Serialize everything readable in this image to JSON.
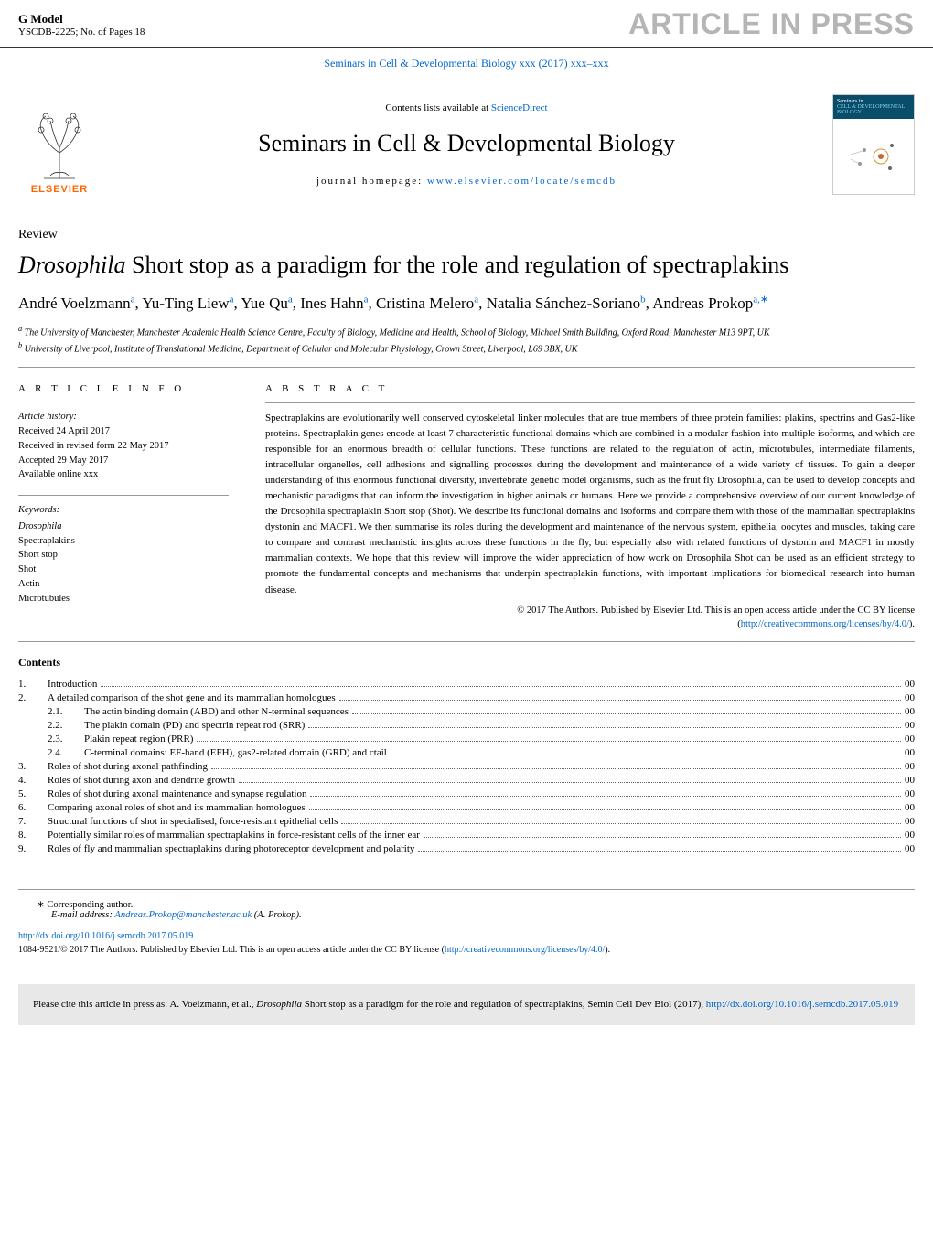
{
  "header": {
    "g_model": "G Model",
    "model_code": "YSCDB-2225;   No. of Pages 18",
    "article_in_press": "ARTICLE IN PRESS"
  },
  "journal_ref": "Seminars in Cell & Developmental Biology xxx (2017) xxx–xxx",
  "masthead": {
    "contents_prefix": "Contents lists available at ",
    "contents_link": "ScienceDirect",
    "journal_title": "Seminars in Cell & Developmental Biology",
    "homepage_prefix": "journal homepage: ",
    "homepage_url": "www.elsevier.com/locate/semcdb",
    "elsevier_label": "ELSEVIER",
    "cover_top": "Seminars in",
    "cover_line1": "CELL & DEVELOPMENTAL",
    "cover_line2": "BIOLOGY"
  },
  "article": {
    "type": "Review",
    "title_italic": "Drosophila",
    "title_rest": " Short stop as a paradigm for the role and regulation of spectraplakins",
    "authors": [
      {
        "name": "André Voelzmann",
        "aff": "a"
      },
      {
        "name": "Yu-Ting Liew",
        "aff": "a"
      },
      {
        "name": "Yue Qu",
        "aff": "a"
      },
      {
        "name": "Ines Hahn",
        "aff": "a"
      },
      {
        "name": "Cristina Melero",
        "aff": "a"
      },
      {
        "name": "Natalia Sánchez-Soriano",
        "aff": "b"
      },
      {
        "name": "Andreas Prokop",
        "aff": "a,",
        "corr": "∗"
      }
    ],
    "affiliations": {
      "a": "The University of Manchester, Manchester Academic Health Science Centre, Faculty of Biology, Medicine and Health, School of Biology, Michael Smith Building, Oxford Road, Manchester M13 9PT, UK",
      "b": "University of Liverpool, Institute of Translational Medicine, Department of Cellular and Molecular Physiology, Crown Street, Liverpool, L69 3BX, UK"
    }
  },
  "info": {
    "heading": "a r t i c l e   i n f o",
    "history_label": "Article history:",
    "received": "Received 24 April 2017",
    "revised": "Received in revised form 22 May 2017",
    "accepted": "Accepted 29 May 2017",
    "online": "Available online xxx",
    "keywords_label": "Keywords:",
    "keywords": [
      "Drosophila",
      "Spectraplakins",
      "Short stop",
      "Shot",
      "Actin",
      "Microtubules"
    ]
  },
  "abstract": {
    "heading": "a b s t r a c t",
    "text": "Spectraplakins are evolutionarily well conserved cytoskeletal linker molecules that are true members of three protein families: plakins, spectrins and Gas2-like proteins. Spectraplakin genes encode at least 7 characteristic functional domains which are combined in a modular fashion into multiple isoforms, and which are responsible for an enormous breadth of cellular functions. These functions are related to the regulation of actin, microtubules, intermediate filaments, intracellular organelles, cell adhesions and signalling processes during the development and maintenance of a wide variety of tissues. To gain a deeper understanding of this enormous functional diversity, invertebrate genetic model organisms, such as the fruit fly Drosophila, can be used to develop concepts and mechanistic paradigms that can inform the investigation in higher animals or humans. Here we provide a comprehensive overview of our current knowledge of the Drosophila spectraplakin Short stop (Shot). We describe its functional domains and isoforms and compare them with those of the mammalian spectraplakins dystonin and MACF1. We then summarise its roles during the development and maintenance of the nervous system, epithelia, oocytes and muscles, taking care to compare and contrast mechanistic insights across these functions in the fly, but especially also with related functions of dystonin and MACF1 in mostly mammalian contexts. We hope that this review will improve the wider appreciation of how work on Drosophila Shot can be used as an efficient strategy to promote the fundamental concepts and mechanisms that underpin spectraplakin functions, with important implications for biomedical research into human disease.",
    "copyright_line1": "© 2017 The Authors. Published by Elsevier Ltd. This is an open access article under the CC BY license",
    "copyright_link": "http://creativecommons.org/licenses/by/4.0/",
    "copyright_close": ")."
  },
  "contents": {
    "heading": "Contents",
    "items": [
      {
        "num": "1.",
        "text": "Introduction",
        "page": "00"
      },
      {
        "num": "2.",
        "text": "A detailed comparison of the shot gene and its mammalian homologues",
        "page": "00"
      },
      {
        "num": "",
        "sub": "2.1.",
        "text": "The actin binding domain (ABD) and other N-terminal sequences",
        "page": "00"
      },
      {
        "num": "",
        "sub": "2.2.",
        "text": "The plakin domain (PD) and spectrin repeat rod (SRR)",
        "page": "00"
      },
      {
        "num": "",
        "sub": "2.3.",
        "text": "Plakin repeat region (PRR)",
        "page": "00"
      },
      {
        "num": "",
        "sub": "2.4.",
        "text": "C-terminal domains: EF-hand (EFH), gas2-related domain (GRD) and ctail",
        "page": "00"
      },
      {
        "num": "3.",
        "text": "Roles of shot during axonal pathfinding",
        "page": "00"
      },
      {
        "num": "4.",
        "text": "Roles of shot during axon and dendrite growth",
        "page": "00"
      },
      {
        "num": "5.",
        "text": "Roles of shot during axonal maintenance and synapse regulation",
        "page": "00"
      },
      {
        "num": "6.",
        "text": "Comparing axonal roles of shot and its mammalian homologues",
        "page": "00"
      },
      {
        "num": "7.",
        "text": "Structural functions of shot in specialised, force-resistant epithelial cells",
        "page": "00"
      },
      {
        "num": "8.",
        "text": "Potentially similar roles of mammalian spectraplakins in force-resistant cells of the inner ear",
        "page": "00"
      },
      {
        "num": "9.",
        "text": "Roles of fly and mammalian spectraplakins during photoreceptor development and polarity",
        "page": "00"
      }
    ]
  },
  "corr": {
    "label": "∗ Corresponding author.",
    "email_label": "E-mail address: ",
    "email": "Andreas.Prokop@manchester.ac.uk",
    "email_suffix": " (A. Prokop)."
  },
  "doi": {
    "url": "http://dx.doi.org/10.1016/j.semcdb.2017.05.019",
    "issn_line_prefix": "1084-9521/© 2017 The Authors. Published by Elsevier Ltd. This is an open access article under the CC BY license (",
    "issn_link": "http://creativecommons.org/licenses/by/4.0/",
    "issn_close": ")."
  },
  "cite": {
    "prefix": "Please cite this article in press as: A. Voelzmann, et al., ",
    "italic": "Drosophila",
    "mid": " Short stop as a paradigm for the role and regulation of spectraplakins, Semin Cell Dev Biol (2017), ",
    "link": "http://dx.doi.org/10.1016/j.semcdb.2017.05.019"
  }
}
